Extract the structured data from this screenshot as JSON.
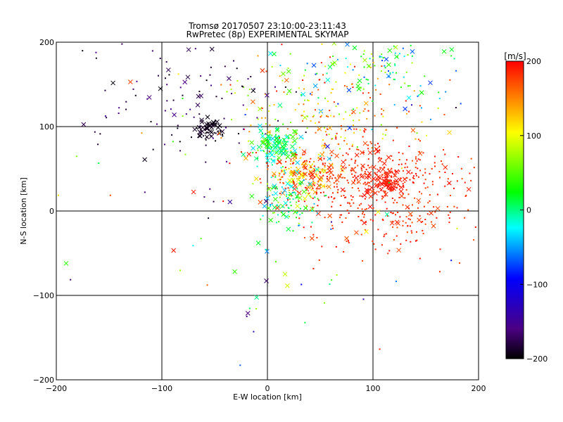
{
  "chart_data": {
    "type": "scatter",
    "title_line1": "Tromsø 20170507 23:10:00-23:11:43",
    "title_line2": "RwPretec (8p) EXPERIMENTAL SKYMAP",
    "xlabel": "E-W location [km]",
    "ylabel": "N-S location [km]",
    "xlim": [
      -200,
      200
    ],
    "ylim": [
      -200,
      200
    ],
    "xticks": [
      -200,
      -100,
      0,
      100,
      200
    ],
    "yticks": [
      -200,
      -100,
      0,
      100,
      200
    ],
    "grid": true,
    "colorbar": {
      "label": "[m/s]",
      "range": [
        -200,
        200
      ],
      "ticks": [
        200,
        100,
        0,
        -100,
        -200
      ],
      "colors": [
        "#000000",
        "#4b0082",
        "#0000ff",
        "#00ffff",
        "#00ff00",
        "#ffff00",
        "#ff0000"
      ]
    },
    "markers": {
      "dot": "meteor detection (small point)",
      "cross": "meteor detection (x)"
    },
    "clusters": [
      {
        "cx": -55,
        "cy": 97,
        "sx": 6,
        "sy": 6,
        "n": 60,
        "vmin": -200,
        "vmax": -185,
        "cross": 0.6
      },
      {
        "cx": 112,
        "cy": 33,
        "sx": 10,
        "sy": 8,
        "n": 90,
        "vmin": 185,
        "vmax": 200,
        "cross": 0.5
      },
      {
        "cx": 35,
        "cy": 45,
        "sx": 18,
        "sy": 12,
        "n": 160,
        "vmin": 90,
        "vmax": 200,
        "cross": 0.4
      },
      {
        "cx": 10,
        "cy": 78,
        "sx": 12,
        "sy": 9,
        "n": 130,
        "vmin": -40,
        "vmax": 60,
        "cross": 0.5
      },
      {
        "cx": 95,
        "cy": 40,
        "sx": 45,
        "sy": 25,
        "n": 420,
        "vmin": 170,
        "vmax": 200,
        "cross": 0.1
      },
      {
        "cx": 20,
        "cy": 15,
        "sx": 14,
        "sy": 20,
        "n": 110,
        "vmin": -60,
        "vmax": 80,
        "cross": 0.3
      },
      {
        "cx": 105,
        "cy": 170,
        "sx": 45,
        "sy": 25,
        "n": 140,
        "vmin": -80,
        "vmax": 80,
        "cross": 0.3
      },
      {
        "cx": 50,
        "cy": 120,
        "sx": 50,
        "sy": 30,
        "n": 200,
        "vmin": 60,
        "vmax": 200,
        "cross": 0.05
      },
      {
        "cx": -80,
        "cy": 130,
        "sx": 45,
        "sy": 45,
        "n": 110,
        "vmin": -200,
        "vmax": -150,
        "cross": 0.25
      },
      {
        "cx": 120,
        "cy": -20,
        "sx": 45,
        "sy": 20,
        "n": 120,
        "vmin": 170,
        "vmax": 200,
        "cross": 0.1
      },
      {
        "cx": 0,
        "cy": 0,
        "sx": 110,
        "sy": 110,
        "n": 90,
        "vmin": -200,
        "vmax": 200,
        "cross": 0.3
      }
    ]
  }
}
